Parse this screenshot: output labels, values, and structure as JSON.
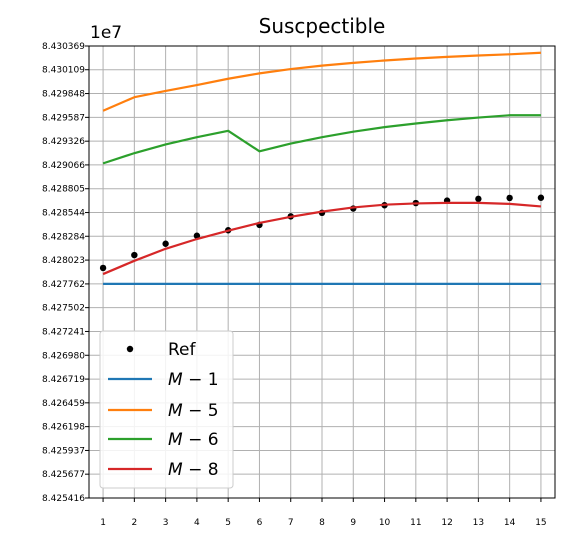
{
  "chart_data": {
    "type": "line",
    "title": "Suscpectible",
    "y_offset_label": "1e7",
    "x": [
      1,
      2,
      3,
      4,
      5,
      6,
      7,
      8,
      9,
      10,
      11,
      12,
      13,
      14,
      15
    ],
    "xlim": [
      0.55,
      15.45
    ],
    "ylim": [
      8.425416,
      8.430369
    ],
    "yticks": [
      "8.425416",
      "8.425677",
      "8.425937",
      "8.426198",
      "8.426459",
      "8.426719",
      "8.426980",
      "8.427241",
      "8.427502",
      "8.427762",
      "8.428023",
      "8.428284",
      "8.428544",
      "8.428805",
      "8.429066",
      "8.429326",
      "8.429587",
      "8.429848",
      "8.430109",
      "8.430369"
    ],
    "grid": true,
    "legend_location": "lower-left",
    "series": [
      {
        "name": "Ref",
        "kind": "scatter",
        "color": "#000000",
        "values": [
          8.427937,
          8.428078,
          8.428202,
          8.42829,
          8.42835,
          8.428409,
          8.428502,
          8.428541,
          8.428588,
          8.428624,
          8.428648,
          8.428675,
          8.428694,
          8.428704,
          8.428706
        ]
      },
      {
        "name": "$M-1$",
        "kind": "line",
        "color": "#1f77b4",
        "values": [
          8.427762,
          8.427762,
          8.427762,
          8.427762,
          8.427762,
          8.427762,
          8.427762,
          8.427762,
          8.427762,
          8.427762,
          8.427762,
          8.427762,
          8.427762,
          8.427762,
          8.427762
        ]
      },
      {
        "name": "$M-5$",
        "kind": "line",
        "color": "#ff7f0e",
        "values": [
          8.42966,
          8.429808,
          8.429877,
          8.429941,
          8.43001,
          8.430069,
          8.430116,
          8.430154,
          8.430184,
          8.43021,
          8.430232,
          8.43025,
          8.430265,
          8.430278,
          8.430295
        ]
      },
      {
        "name": "$M-6$",
        "kind": "line",
        "color": "#2ca02c",
        "values": [
          8.429083,
          8.429195,
          8.42929,
          8.42937,
          8.42944,
          8.429215,
          8.4293,
          8.42937,
          8.42943,
          8.42948,
          8.42952,
          8.429555,
          8.429585,
          8.42961,
          8.42961
        ]
      },
      {
        "name": "$M-8$",
        "kind": "line",
        "color": "#d62728",
        "values": [
          8.42787,
          8.428015,
          8.428147,
          8.428254,
          8.428345,
          8.42843,
          8.428497,
          8.428554,
          8.4286,
          8.42863,
          8.428644,
          8.42865,
          8.42865,
          8.428639,
          8.428611
        ]
      }
    ]
  }
}
